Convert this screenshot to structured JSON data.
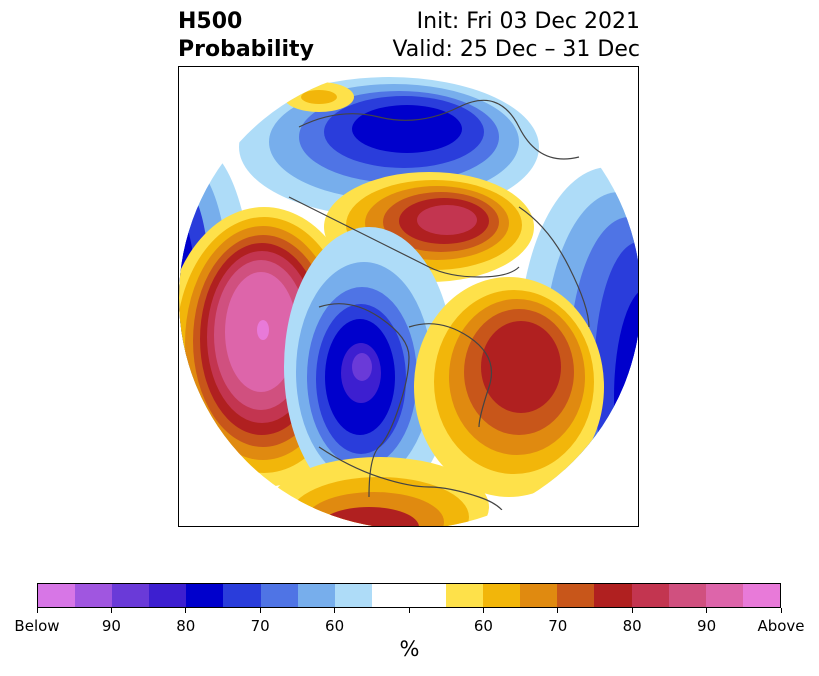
{
  "title": {
    "left_line1": "H500",
    "left_line2": "Probability",
    "right_line1": "Init: Fri 03 Dec 2021",
    "right_line2": "Valid: 25 Dec – 31 Dec"
  },
  "colors": {
    "below": [
      "#d776e6",
      "#a056e0",
      "#6a3ad8",
      "#3d1fd0",
      "#0000cc",
      "#2a3ddb",
      "#4f74e5",
      "#77aeec",
      "#aedcf8"
    ],
    "neutral": "#ffffff",
    "above": [
      "#fee14a",
      "#f2b60a",
      "#e08a10",
      "#c8561a",
      "#b02020",
      "#c33550",
      "#d0507f",
      "#dd65aa",
      "#e87ad9"
    ]
  },
  "colorbar": {
    "tick_labels": [
      "Below",
      "90",
      "80",
      "70",
      "60",
      "",
      "60",
      "70",
      "80",
      "90",
      "Above"
    ],
    "unit": "%"
  },
  "map": {
    "projection": "north-polar-stereographic",
    "field": "500 hPa height anomaly probability"
  }
}
